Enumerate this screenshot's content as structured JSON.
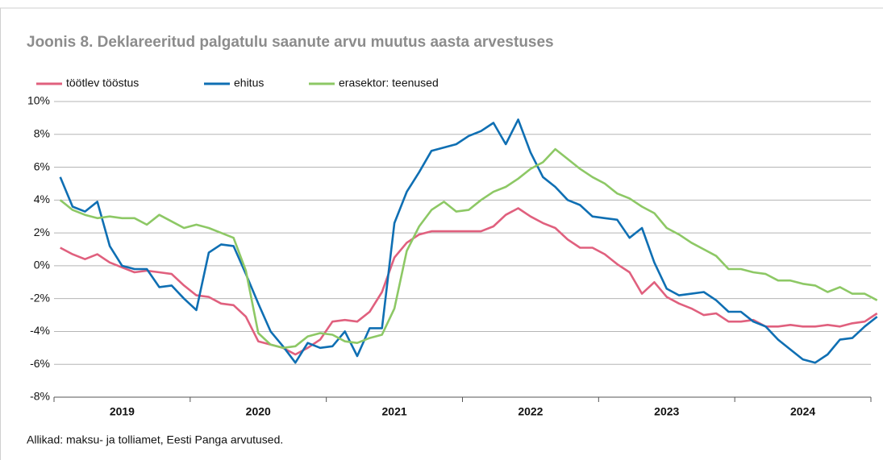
{
  "chart_data": {
    "type": "line",
    "title": "Joonis 8. Deklareeritud palgatulu saanute arvu muutus aasta arvestuses",
    "source": "Allikad: maksu- ja tolliamet, Eesti Panga arvutused.",
    "years": [
      "2019",
      "2020",
      "2021",
      "2022",
      "2023",
      "2024"
    ],
    "grid": true,
    "legend": "top",
    "ylim": [
      -8,
      10
    ],
    "yticks": [
      {
        "value": -8,
        "label": "-8%"
      },
      {
        "value": -6,
        "label": "-6%"
      },
      {
        "value": -4,
        "label": "-4%"
      },
      {
        "value": -2,
        "label": "-2%"
      },
      {
        "value": 0,
        "label": "0%"
      },
      {
        "value": 2,
        "label": "2%"
      },
      {
        "value": 4,
        "label": "4%"
      },
      {
        "value": 6,
        "label": "6%"
      },
      {
        "value": 8,
        "label": "8%"
      },
      {
        "value": 10,
        "label": "10%"
      }
    ],
    "series": [
      {
        "name": "töötlev tööstus",
        "color": "#e0607e",
        "values": [
          1.1,
          0.7,
          0.4,
          0.7,
          0.2,
          -0.1,
          -0.4,
          -0.3,
          -0.4,
          -0.5,
          -1.2,
          -1.8,
          -1.9,
          -2.3,
          -2.4,
          -3.1,
          -4.6,
          -4.8,
          -5.0,
          -5.4,
          -5.0,
          -4.5,
          -3.4,
          -3.3,
          -3.4,
          -2.8,
          -1.6,
          0.5,
          1.4,
          1.9,
          2.1,
          2.1,
          2.1,
          2.1,
          2.1,
          2.4,
          3.1,
          3.5,
          3.0,
          2.6,
          2.3,
          1.6,
          1.1,
          1.1,
          0.7,
          0.1,
          -0.4,
          -1.7,
          -1.0,
          -1.9,
          -2.3,
          -2.6,
          -3.0,
          -2.9,
          -3.4,
          -3.4,
          -3.3,
          -3.7,
          -3.7,
          -3.6,
          -3.7,
          -3.7,
          -3.6,
          -3.7,
          -3.5,
          -3.4,
          -2.9
        ]
      },
      {
        "name": "ehitus",
        "color": "#0f6fb3",
        "values": [
          5.4,
          3.6,
          3.3,
          3.9,
          1.2,
          0.0,
          -0.2,
          -0.2,
          -1.3,
          -1.2,
          -2.0,
          -2.7,
          0.8,
          1.3,
          1.2,
          -0.5,
          -2.3,
          -4.0,
          -4.9,
          -5.9,
          -4.7,
          -5.0,
          -4.9,
          -4.0,
          -5.5,
          -3.8,
          -3.8,
          2.6,
          4.5,
          5.7,
          7.0,
          7.2,
          7.4,
          7.9,
          8.2,
          8.7,
          7.4,
          8.9,
          6.9,
          5.4,
          4.8,
          4.0,
          3.7,
          3.0,
          2.9,
          2.8,
          1.7,
          2.3,
          0.2,
          -1.4,
          -1.8,
          -1.7,
          -1.6,
          -2.1,
          -2.8,
          -2.8,
          -3.4,
          -3.7,
          -4.5,
          -5.1,
          -5.7,
          -5.9,
          -5.4,
          -4.5,
          -4.4,
          -3.7,
          -3.1
        ]
      },
      {
        "name": "erasektor: teenused",
        "color": "#8dc865",
        "values": [
          4.0,
          3.4,
          3.1,
          2.9,
          3.0,
          2.9,
          2.9,
          2.5,
          3.1,
          2.7,
          2.3,
          2.5,
          2.3,
          2.0,
          1.7,
          -0.3,
          -4.1,
          -4.8,
          -5.0,
          -4.9,
          -4.3,
          -4.1,
          -4.2,
          -4.6,
          -4.7,
          -4.4,
          -4.2,
          -2.6,
          0.9,
          2.4,
          3.4,
          3.9,
          3.3,
          3.4,
          4.0,
          4.5,
          4.8,
          5.3,
          5.9,
          6.3,
          7.1,
          6.5,
          5.9,
          5.4,
          5.0,
          4.4,
          4.1,
          3.6,
          3.2,
          2.3,
          1.9,
          1.4,
          1.0,
          0.6,
          -0.2,
          -0.2,
          -0.4,
          -0.5,
          -0.9,
          -0.9,
          -1.1,
          -1.2,
          -1.6,
          -1.3,
          -1.7,
          -1.7,
          -2.1
        ]
      }
    ]
  }
}
